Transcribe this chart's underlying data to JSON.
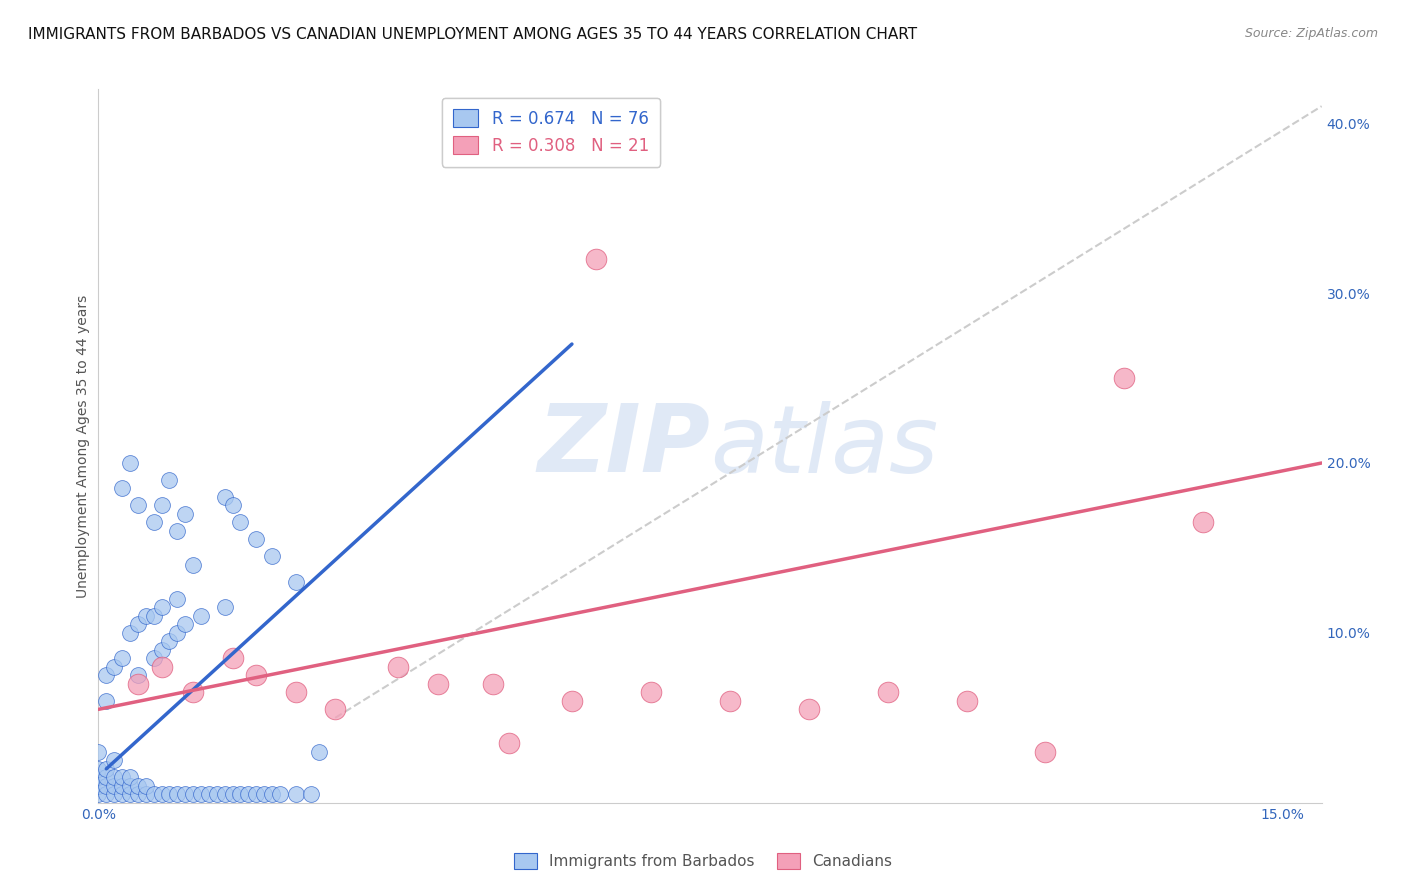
{
  "title": "IMMIGRANTS FROM BARBADOS VS CANADIAN UNEMPLOYMENT AMONG AGES 35 TO 44 YEARS CORRELATION CHART",
  "source": "Source: ZipAtlas.com",
  "ylabel": "Unemployment Among Ages 35 to 44 years",
  "legend1_label": "Immigrants from Barbados",
  "legend2_label": "Canadians",
  "R1": 0.674,
  "N1": 76,
  "R2": 0.308,
  "N2": 21,
  "color_blue": "#A8C8F0",
  "color_pink": "#F4A0B8",
  "color_line_blue": "#3366CC",
  "color_line_pink": "#E06080",
  "color_line_dashed": "#CCCCCC",
  "xlim": [
    0.0,
    0.155
  ],
  "ylim": [
    0.0,
    0.42
  ],
  "yticks": [
    0.0,
    0.1,
    0.2,
    0.3,
    0.4
  ],
  "ytick_labels": [
    "",
    "10.0%",
    "20.0%",
    "30.0%",
    "40.0%"
  ],
  "xticks": [
    0.0,
    0.03,
    0.06,
    0.09,
    0.12,
    0.15
  ],
  "xtick_labels": [
    "0.0%",
    "",
    "",
    "",
    "",
    "15.0%"
  ],
  "blue_x": [
    0.0,
    0.0,
    0.0,
    0.0,
    0.0,
    0.001,
    0.001,
    0.001,
    0.001,
    0.001,
    0.001,
    0.002,
    0.002,
    0.002,
    0.002,
    0.002,
    0.003,
    0.003,
    0.003,
    0.003,
    0.004,
    0.004,
    0.004,
    0.004,
    0.005,
    0.005,
    0.005,
    0.005,
    0.006,
    0.006,
    0.006,
    0.007,
    0.007,
    0.007,
    0.008,
    0.008,
    0.008,
    0.009,
    0.009,
    0.01,
    0.01,
    0.01,
    0.011,
    0.011,
    0.012,
    0.013,
    0.013,
    0.014,
    0.015,
    0.016,
    0.016,
    0.017,
    0.018,
    0.019,
    0.02,
    0.021,
    0.022,
    0.023,
    0.025,
    0.027,
    0.003,
    0.004,
    0.005,
    0.007,
    0.008,
    0.009,
    0.01,
    0.011,
    0.012,
    0.016,
    0.017,
    0.018,
    0.02,
    0.022,
    0.025,
    0.028
  ],
  "blue_y": [
    0.005,
    0.01,
    0.015,
    0.02,
    0.03,
    0.005,
    0.01,
    0.015,
    0.02,
    0.06,
    0.075,
    0.005,
    0.01,
    0.015,
    0.025,
    0.08,
    0.005,
    0.01,
    0.015,
    0.085,
    0.005,
    0.01,
    0.015,
    0.1,
    0.005,
    0.01,
    0.075,
    0.105,
    0.005,
    0.01,
    0.11,
    0.005,
    0.085,
    0.11,
    0.005,
    0.09,
    0.115,
    0.005,
    0.095,
    0.005,
    0.1,
    0.12,
    0.005,
    0.105,
    0.005,
    0.005,
    0.11,
    0.005,
    0.005,
    0.005,
    0.115,
    0.005,
    0.005,
    0.005,
    0.005,
    0.005,
    0.005,
    0.005,
    0.005,
    0.005,
    0.185,
    0.2,
    0.175,
    0.165,
    0.175,
    0.19,
    0.16,
    0.17,
    0.14,
    0.18,
    0.175,
    0.165,
    0.155,
    0.145,
    0.13,
    0.03
  ],
  "pink_x": [
    0.005,
    0.008,
    0.012,
    0.017,
    0.02,
    0.025,
    0.03,
    0.038,
    0.043,
    0.05,
    0.052,
    0.06,
    0.063,
    0.07,
    0.08,
    0.09,
    0.1,
    0.11,
    0.12,
    0.13,
    0.14
  ],
  "pink_y": [
    0.07,
    0.08,
    0.065,
    0.085,
    0.075,
    0.065,
    0.055,
    0.08,
    0.07,
    0.07,
    0.035,
    0.06,
    0.32,
    0.065,
    0.06,
    0.055,
    0.065,
    0.06,
    0.03,
    0.25,
    0.165
  ],
  "blue_line_x": [
    0.001,
    0.06
  ],
  "blue_line_y": [
    0.02,
    0.27
  ],
  "pink_line_x": [
    0.0,
    0.155
  ],
  "pink_line_y": [
    0.055,
    0.2
  ],
  "dash_line_x": [
    0.03,
    0.155
  ],
  "dash_line_y": [
    0.05,
    0.41
  ],
  "title_fontsize": 11,
  "axis_label_fontsize": 10,
  "tick_fontsize": 10,
  "source_fontsize": 9
}
